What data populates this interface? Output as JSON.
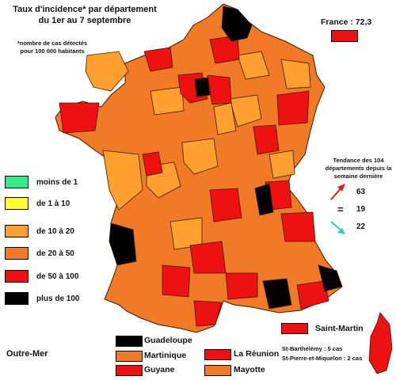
{
  "map": {
    "title_line1": "Taux d'incidence* par département",
    "title_line2": "du 1er au 7 septembre",
    "footnote_line1": "*nombre de cas détectés",
    "footnote_line2": "pour 100 000 habitants",
    "france_label": "France : 72,3",
    "france_color": "#ee1111"
  },
  "legend": [
    {
      "label": "moins de 1",
      "color": "#33ee88"
    },
    {
      "label": "de 1 à 10",
      "color": "#ffff33"
    },
    {
      "label": "de 10 à 20",
      "color": "#ffa030"
    },
    {
      "label": "de 20 à 50",
      "color": "#f07a26"
    },
    {
      "label": "de 50 à 100",
      "color": "#ee1111"
    },
    {
      "label": "plus de 100",
      "color": "#000000"
    }
  ],
  "trend": {
    "title_line1": "Tendance des 104",
    "title_line2": "départements depuis la",
    "title_line3": "semaine dernière",
    "up_value": "63",
    "equal_symbol": "=",
    "equal_value": "19",
    "down_value": "22",
    "up_color": "#cc2222",
    "down_color": "#33ccaa"
  },
  "outre_mer": {
    "label": "Outre-Mer",
    "territories": [
      {
        "name": "Guadeloupe",
        "color": "#000000"
      },
      {
        "name": "Martinique",
        "color": "#f07a26"
      },
      {
        "name": "Guyane",
        "color": "#ee1111"
      },
      {
        "name": "La Réunion",
        "color": "#ee1111"
      },
      {
        "name": "Mayotte",
        "color": "#f07a26"
      },
      {
        "name": "Saint-Martin",
        "color": "#ee1111"
      }
    ],
    "st_barthelemy": "St-Barthélémy : 5 cas",
    "st_pierre": "St-Pierre-et-Miquelon : 2 cas"
  },
  "icons": {
    "up": "arrow-up-right-icon",
    "down": "arrow-down-right-icon"
  }
}
